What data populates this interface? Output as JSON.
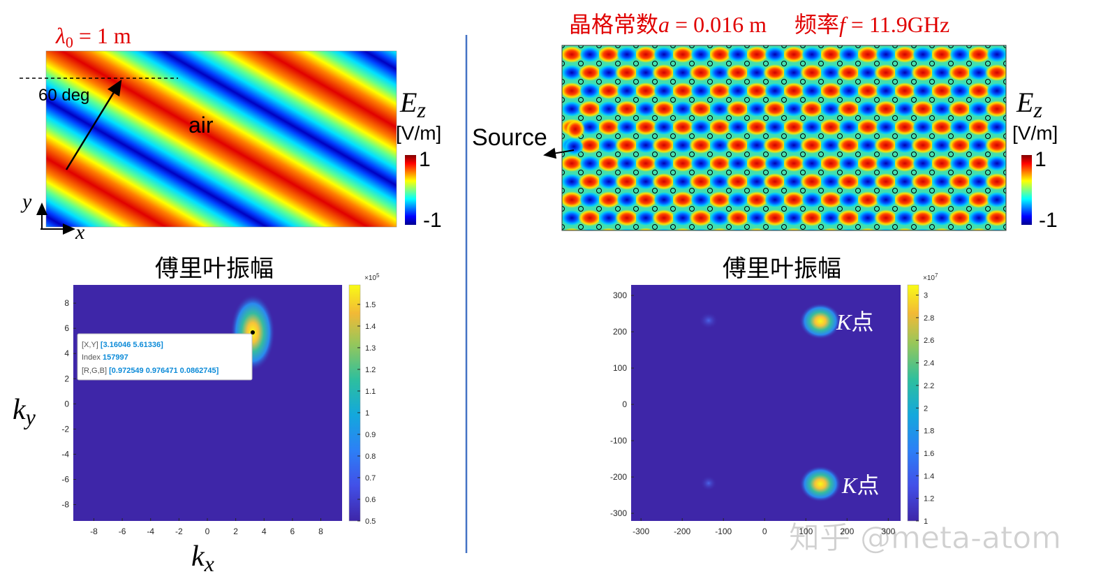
{
  "left_panel": {
    "wavelength_symbol": "λ",
    "wavelength_subscript": "0",
    "wavelength_value": " = 1 m",
    "angle_label": "60 deg",
    "medium_label": "air",
    "field_symbol": "E",
    "field_subscript": "z",
    "field_unit": "[V/m]",
    "colorbar_max": 1,
    "colorbar_min": -1,
    "y_axis": "y",
    "x_axis": "x"
  },
  "right_panel": {
    "lattice_label": "晶格常数",
    "lattice_symbol": "a",
    "lattice_value": " = 0.016 m",
    "freq_label": "频率",
    "freq_symbol": "f",
    "freq_value": " = 11.9GHz",
    "source_label": "Source",
    "field_symbol": "E",
    "field_subscript": "z",
    "field_unit": "[V/m]",
    "colorbar_max": 1,
    "colorbar_min": -1
  },
  "left_spectrum": {
    "title": "傅里叶振幅",
    "xlim": [
      -9.45,
      9.5
    ],
    "ylim": [
      -9.3,
      9.45
    ],
    "xticks": [
      -8,
      -6,
      -4,
      -2,
      0,
      2,
      4,
      6,
      8
    ],
    "yticks": [
      -8,
      -6,
      -4,
      -2,
      0,
      2,
      4,
      6,
      8
    ],
    "clim": [
      0.5,
      1.59
    ],
    "cticks": [
      0.5,
      0.6,
      0.7,
      0.8,
      0.9,
      1,
      1.1,
      1.2,
      1.3,
      1.4,
      1.5
    ],
    "exponent_base": "×10",
    "exponent_power": "5",
    "datatip": {
      "xy_key": "[X,Y]",
      "xy_value": "[3.16046 5.61336]",
      "index_key": "Index",
      "index_value": 157997,
      "rgb_key": "[R,G,B]",
      "rgb_value": "[0.972549 0.976471 0.0862745]"
    },
    "x_label_symbol": "k",
    "x_label_subscript": "x",
    "y_label_symbol": "k",
    "y_label_subscript": "y"
  },
  "right_spectrum": {
    "title": "傅里叶振幅",
    "xlim": [
      -324,
      330
    ],
    "ylim": [
      -321,
      329
    ],
    "xticks": [
      -300,
      -200,
      -100,
      0,
      100,
      200,
      300
    ],
    "yticks": [
      -300,
      -200,
      -100,
      0,
      100,
      200,
      300
    ],
    "clim": [
      1,
      3.09
    ],
    "cticks": [
      1,
      1.2,
      1.4,
      1.6,
      1.8,
      2,
      2.2,
      2.4,
      2.6,
      2.8,
      3
    ],
    "exponent_base": "×10",
    "exponent_power": "7",
    "peak_labels": [
      {
        "symbol": "K",
        "text": "点"
      },
      {
        "symbol": "K",
        "text": "点"
      }
    ]
  },
  "watermark": "知乎 @meta-atom"
}
